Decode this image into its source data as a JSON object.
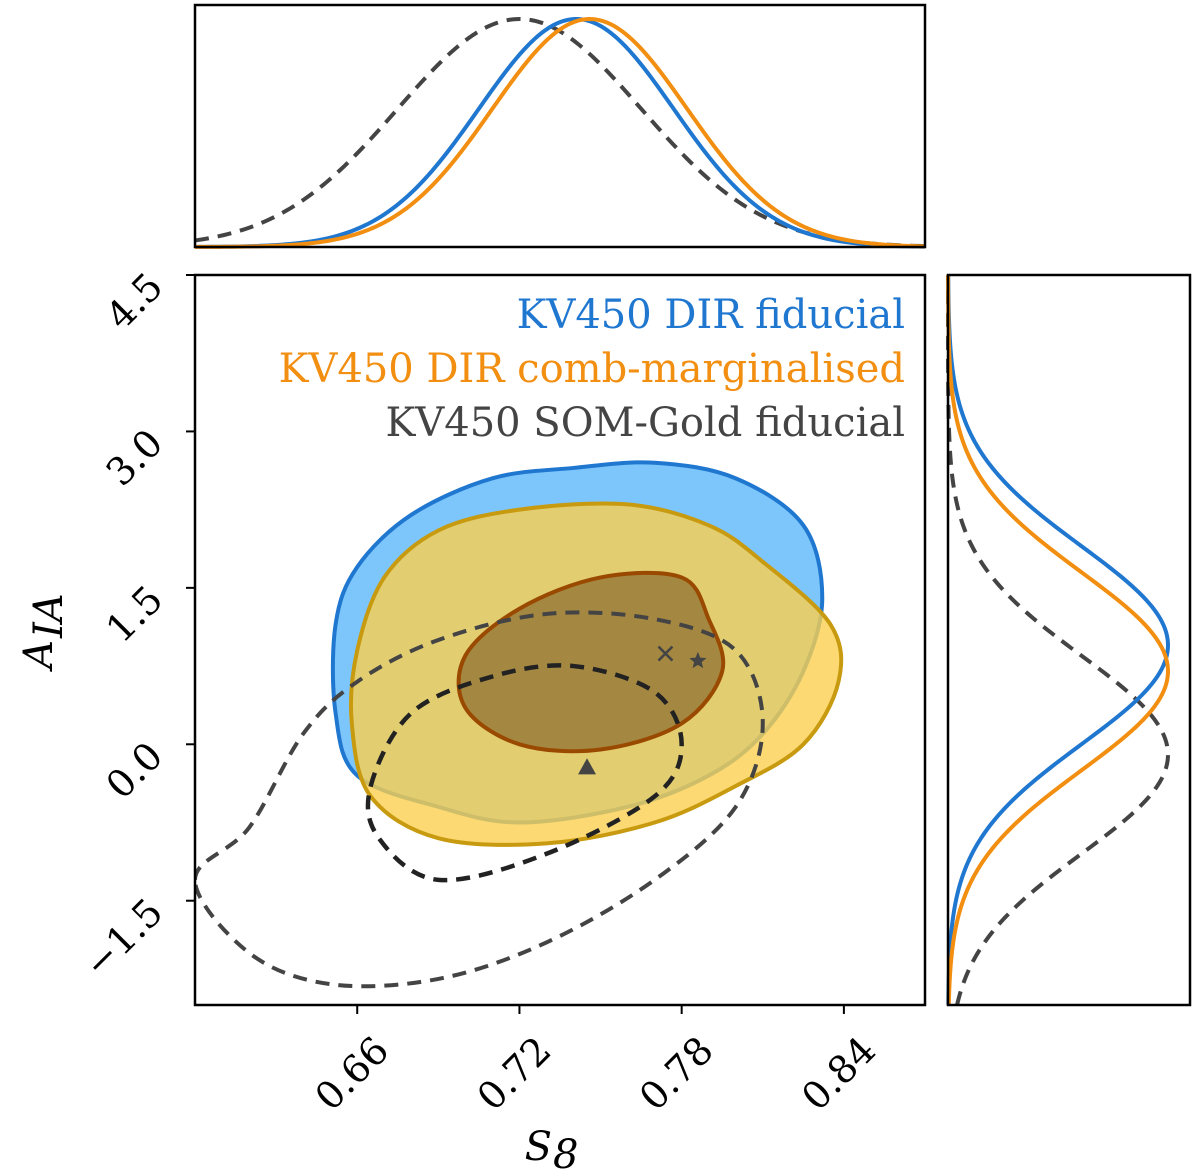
{
  "chart_data": {
    "type": "corner-contour",
    "xlabel": "S",
    "xlabel_sub": "8",
    "ylabel": "A",
    "ylabel_sub": "IA",
    "xlim": [
      0.6,
      0.87
    ],
    "ylim": [
      -2.5,
      4.5
    ],
    "xticks": [
      0.66,
      0.72,
      0.78,
      0.84
    ],
    "xtick_labels": [
      "0.66",
      "0.72",
      "0.78",
      "0.84"
    ],
    "yticks": [
      -1.5,
      0.0,
      1.5,
      3.0,
      4.5
    ],
    "ytick_labels": [
      "−1.5",
      "0.0",
      "1.5",
      "3.0",
      "4.5"
    ],
    "legend": {
      "placement": "top-right",
      "entries": [
        "KV450 DIR fiducial",
        "KV450 DIR comb-marginalised",
        "KV450 SOM-Gold fiducial"
      ]
    },
    "series": [
      {
        "name": "KV450 DIR fiducial",
        "color": "#1f77d0",
        "fill_outer": "#7dc6fb",
        "style": "filled",
        "s8_mean": 0.741,
        "s8_sigma": 0.036,
        "aia_mean": 0.95,
        "aia_sigma": 0.95,
        "contour_95": [
          [
            0.652,
            1.15
          ],
          [
            0.66,
            1.7
          ],
          [
            0.68,
            2.2
          ],
          [
            0.71,
            2.55
          ],
          [
            0.74,
            2.65
          ],
          [
            0.77,
            2.7
          ],
          [
            0.8,
            2.55
          ],
          [
            0.825,
            2.1
          ],
          [
            0.832,
            1.4
          ],
          [
            0.825,
            0.7
          ],
          [
            0.81,
            0.1
          ],
          [
            0.79,
            -0.3
          ],
          [
            0.76,
            -0.6
          ],
          [
            0.72,
            -0.75
          ],
          [
            0.69,
            -0.6
          ],
          [
            0.66,
            -0.3
          ],
          [
            0.652,
            0.3
          ]
        ],
        "best_fit_marker": "star",
        "best_fit": [
          0.786,
          0.8
        ]
      },
      {
        "name": "KV450 DIR comb-marginalised",
        "color": "#f28e10",
        "fill_outer": "#fbd04f",
        "style": "filled",
        "s8_mean": 0.746,
        "s8_sigma": 0.036,
        "aia_mean": 0.7,
        "aia_sigma": 0.95,
        "contour_95": [
          [
            0.66,
            0.9
          ],
          [
            0.67,
            1.6
          ],
          [
            0.69,
            2.05
          ],
          [
            0.72,
            2.25
          ],
          [
            0.76,
            2.3
          ],
          [
            0.79,
            2.1
          ],
          [
            0.81,
            1.75
          ],
          [
            0.835,
            1.15
          ],
          [
            0.838,
            0.6
          ],
          [
            0.825,
            0.0
          ],
          [
            0.8,
            -0.4
          ],
          [
            0.77,
            -0.75
          ],
          [
            0.73,
            -0.95
          ],
          [
            0.69,
            -0.9
          ],
          [
            0.665,
            -0.5
          ],
          [
            0.658,
            0.2
          ]
        ],
        "contour_68": [
          [
            0.7,
            0.85
          ],
          [
            0.72,
            1.3
          ],
          [
            0.75,
            1.6
          ],
          [
            0.78,
            1.6
          ],
          [
            0.79,
            1.2
          ],
          [
            0.795,
            0.7
          ],
          [
            0.78,
            0.2
          ],
          [
            0.75,
            -0.05
          ],
          [
            0.72,
            0.0
          ],
          [
            0.7,
            0.35
          ]
        ],
        "best_fit_marker": "x",
        "best_fit": [
          0.774,
          0.87
        ]
      },
      {
        "name": "KV450 SOM-Gold fiducial",
        "color": "#444444",
        "style": "dashed",
        "s8_mean": 0.72,
        "s8_sigma": 0.045,
        "aia_mean": -0.1,
        "aia_sigma": 0.95,
        "contour_95": [
          [
            0.6,
            -1.3
          ],
          [
            0.62,
            -0.8
          ],
          [
            0.64,
            0.1
          ],
          [
            0.66,
            0.6
          ],
          [
            0.69,
            1.0
          ],
          [
            0.73,
            1.25
          ],
          [
            0.77,
            1.2
          ],
          [
            0.8,
            0.9
          ],
          [
            0.81,
            0.2
          ],
          [
            0.8,
            -0.6
          ],
          [
            0.77,
            -1.3
          ],
          [
            0.73,
            -1.9
          ],
          [
            0.69,
            -2.25
          ],
          [
            0.65,
            -2.3
          ],
          [
            0.62,
            -2.0
          ]
        ],
        "contour_68": [
          [
            0.665,
            -0.4
          ],
          [
            0.68,
            0.3
          ],
          [
            0.71,
            0.65
          ],
          [
            0.74,
            0.75
          ],
          [
            0.77,
            0.5
          ],
          [
            0.78,
            0.0
          ],
          [
            0.77,
            -0.5
          ],
          [
            0.73,
            -1.05
          ],
          [
            0.69,
            -1.3
          ],
          [
            0.668,
            -0.9
          ]
        ],
        "best_fit_marker": "triangle",
        "best_fit": [
          0.745,
          -0.22
        ]
      }
    ]
  }
}
